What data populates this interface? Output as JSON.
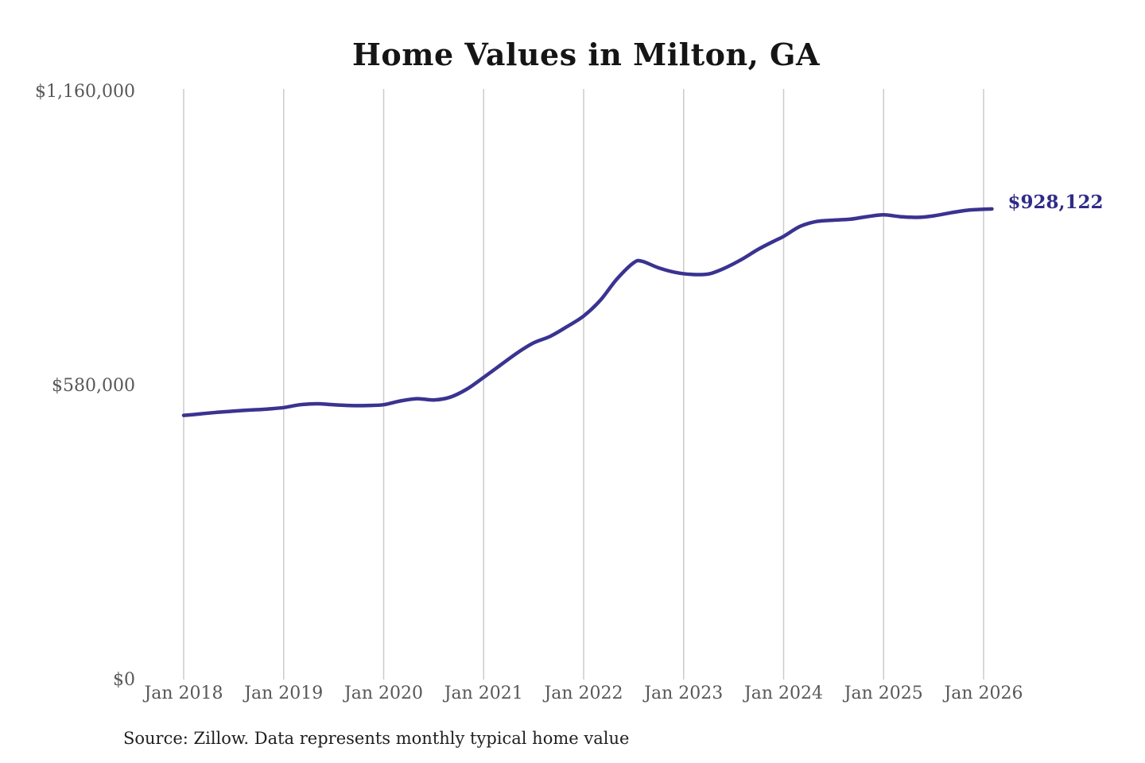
{
  "title": "Home Values in Milton, GA",
  "source_note": "Source: Zillow. Data represents monthly typical home value",
  "colors": {
    "line": "#3a3391",
    "end_label": "#2e2b88",
    "grid": "#cbcbcb",
    "axis_text": "#585858",
    "title_text": "#151515",
    "source_text": "#1f1f1f",
    "background": "#ffffff"
  },
  "chart_data": {
    "type": "line",
    "title": "Home Values in Milton, GA",
    "xlabel": "",
    "ylabel": "",
    "legend": "none",
    "grid": "vertical-only",
    "ylim": [
      0,
      1160000
    ],
    "y_ticks": [
      {
        "value": 0,
        "label": "$0"
      },
      {
        "value": 580000,
        "label": "$580,000"
      },
      {
        "value": 1160000,
        "label": "$1,160,000"
      }
    ],
    "x_ticks": [
      {
        "date": "2018-01",
        "label": "Jan 2018"
      },
      {
        "date": "2019-01",
        "label": "Jan 2019"
      },
      {
        "date": "2020-01",
        "label": "Jan 2020"
      },
      {
        "date": "2021-01",
        "label": "Jan 2021"
      },
      {
        "date": "2022-01",
        "label": "Jan 2022"
      },
      {
        "date": "2023-01",
        "label": "Jan 2023"
      },
      {
        "date": "2024-01",
        "label": "Jan 2024"
      },
      {
        "date": "2025-01",
        "label": "Jan 2025"
      },
      {
        "date": "2026-01",
        "label": "Jan 2026"
      }
    ],
    "series": [
      {
        "name": "Monthly typical home value",
        "dates": [
          "2018-01",
          "2018-03",
          "2018-05",
          "2018-07",
          "2018-09",
          "2018-11",
          "2019-01",
          "2019-03",
          "2019-05",
          "2019-07",
          "2019-09",
          "2019-11",
          "2020-01",
          "2020-03",
          "2020-05",
          "2020-07",
          "2020-09",
          "2020-11",
          "2021-01",
          "2021-03",
          "2021-05",
          "2021-07",
          "2021-09",
          "2021-11",
          "2022-01",
          "2022-03",
          "2022-05",
          "2022-07",
          "2022-08",
          "2022-10",
          "2022-12",
          "2023-02",
          "2023-04",
          "2023-06",
          "2023-08",
          "2023-10",
          "2023-12",
          "2024-01",
          "2024-03",
          "2024-05",
          "2024-07",
          "2024-09",
          "2024-11",
          "2025-01",
          "2025-03",
          "2025-05",
          "2025-07",
          "2025-09",
          "2025-11",
          "2026-01",
          "2026-02"
        ],
        "values": [
          521000,
          524000,
          527000,
          529500,
          531500,
          533500,
          536500,
          542000,
          544000,
          542000,
          540500,
          540500,
          542000,
          549500,
          554000,
          551500,
          557000,
          573000,
          596000,
          620000,
          644000,
          664000,
          677000,
          696000,
          717000,
          748000,
          790000,
          822000,
          825000,
          812000,
          803000,
          799000,
          800000,
          812000,
          829000,
          849000,
          866000,
          874000,
          894000,
          903500,
          906000,
          908000,
          913000,
          916500,
          913000,
          911500,
          914500,
          920500,
          925500,
          927500,
          928122
        ]
      }
    ],
    "end_annotation": {
      "label": "$928,122",
      "value": 928122,
      "date": "2026-02"
    }
  }
}
